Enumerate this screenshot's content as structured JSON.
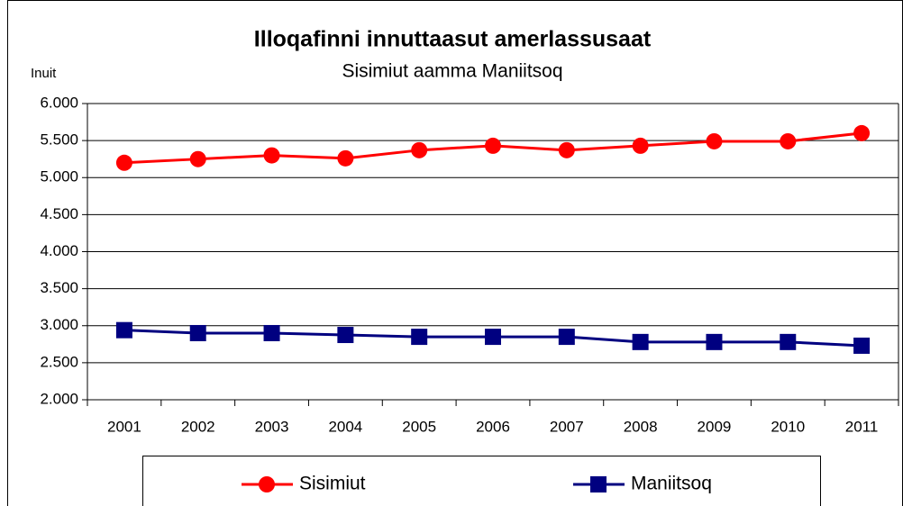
{
  "chart_data": {
    "type": "line",
    "title": "Illoqafinni innuttaasut amerlassusaat",
    "subtitle": "Sisimiut aamma Maniitsoq",
    "y_label": "Inuit",
    "categories": [
      "2001",
      "2002",
      "2003",
      "2004",
      "2005",
      "2006",
      "2007",
      "2008",
      "2009",
      "2010",
      "2011"
    ],
    "series": [
      {
        "name": "Sisimiut",
        "color": "#ff0000",
        "marker": "circle",
        "values": [
          5200,
          5250,
          5300,
          5260,
          5370,
          5430,
          5370,
          5430,
          5490,
          5490,
          5600
        ]
      },
      {
        "name": "Maniitsoq",
        "color": "#000080",
        "marker": "square",
        "values": [
          2940,
          2900,
          2900,
          2875,
          2850,
          2850,
          2850,
          2780,
          2780,
          2780,
          2730
        ]
      }
    ],
    "ylim": [
      2000,
      6000
    ],
    "yticks": [
      {
        "value": 2000,
        "label": "2.000"
      },
      {
        "value": 2500,
        "label": "2.500"
      },
      {
        "value": 3000,
        "label": "3.000"
      },
      {
        "value": 3500,
        "label": "3.500"
      },
      {
        "value": 4000,
        "label": "4.000"
      },
      {
        "value": 4500,
        "label": "4.500"
      },
      {
        "value": 5000,
        "label": "5.000"
      },
      {
        "value": 5500,
        "label": "5.500"
      },
      {
        "value": 6000,
        "label": "6.000"
      }
    ],
    "grid": true,
    "legend": "bottom"
  }
}
